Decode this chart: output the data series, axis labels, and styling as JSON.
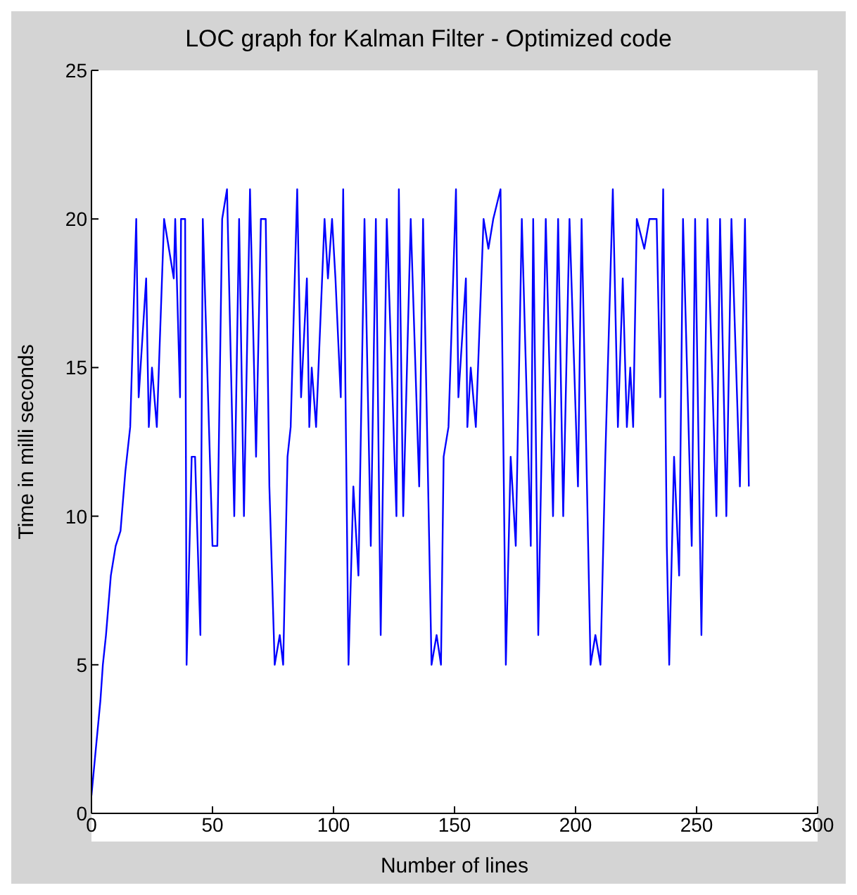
{
  "chart_data": {
    "type": "line",
    "title": "LOC graph for Kalman Filter - Optimized code",
    "xlabel": "Number of lines",
    "ylabel": "Time in milli seconds",
    "color": "#0000ff",
    "xlim": [
      0,
      300
    ],
    "ylim": [
      0,
      25
    ],
    "xticks": [
      0,
      50,
      100,
      150,
      200,
      250,
      300
    ],
    "yticks": [
      0,
      5,
      10,
      15,
      20,
      25
    ],
    "x": [
      0,
      1.6,
      3.7,
      4.7,
      6,
      8,
      10,
      12,
      14,
      16,
      18.5,
      19.5,
      22.6,
      23.7,
      25,
      27,
      30,
      34,
      34.6,
      36.6,
      37,
      38.7,
      39.3,
      41.4,
      42.8,
      45,
      46,
      50,
      52,
      54,
      56,
      59,
      61,
      63,
      65.5,
      68,
      70,
      72,
      73.5,
      75.7,
      77.8,
      79.2,
      81,
      82.3,
      85,
      86.6,
      89,
      90,
      91,
      92.8,
      96.3,
      97.7,
      99.4,
      100.8,
      103,
      104,
      106.2,
      108.2,
      110.3,
      112.8,
      115.4,
      117.5,
      119.5,
      122,
      126,
      127,
      128.8,
      131.9,
      135.4,
      137,
      140.5,
      142.6,
      144.4,
      145.5,
      147.5,
      150.6,
      151.6,
      154.7,
      155.3,
      156.7,
      158.8,
      162,
      164,
      166,
      169,
      171.2,
      173.2,
      175.3,
      177.8,
      181.5,
      182.5,
      184.6,
      187.7,
      190.7,
      192.8,
      194.9,
      197.5,
      201,
      202.5,
      206.2,
      208.2,
      210.3,
      212.3,
      215.4,
      217.5,
      219.5,
      221.2,
      222.6,
      223.8,
      225.3,
      228.4,
      230.5,
      233.5,
      235,
      236.2,
      237.7,
      238.7,
      240.7,
      242.8,
      244.4,
      248,
      249.4,
      252,
      254.5,
      258.2,
      259.7,
      262.3,
      264.4,
      267.9,
      270,
      271.6
    ],
    "values": [
      0.6,
      2,
      3.8,
      5,
      6,
      8,
      9,
      9.5,
      11.5,
      13,
      20,
      14,
      18,
      13,
      15,
      13,
      20,
      18,
      20,
      14,
      20,
      20,
      5,
      12,
      12,
      6,
      20,
      9,
      9,
      20,
      21,
      10,
      20,
      10,
      21,
      12,
      20,
      20,
      11,
      5,
      6,
      5,
      12,
      13,
      21,
      14,
      18,
      13,
      15,
      13,
      20,
      18,
      20,
      18,
      14,
      21,
      5,
      11,
      8,
      20,
      9,
      20,
      6,
      20,
      10,
      21,
      10,
      20,
      11,
      20,
      5,
      6,
      5,
      12,
      13,
      21,
      14,
      18,
      13,
      15,
      13,
      20,
      19,
      20,
      21,
      5,
      12,
      9,
      20,
      9,
      20,
      6,
      20,
      10,
      20,
      10,
      20,
      11,
      20,
      5,
      6,
      5,
      12,
      21,
      13,
      18,
      13,
      15,
      13,
      20,
      19,
      20,
      20,
      14,
      21,
      9,
      5,
      12,
      8,
      20,
      9,
      20,
      6,
      20,
      10,
      20,
      10,
      20,
      11,
      20,
      11
    ]
  }
}
